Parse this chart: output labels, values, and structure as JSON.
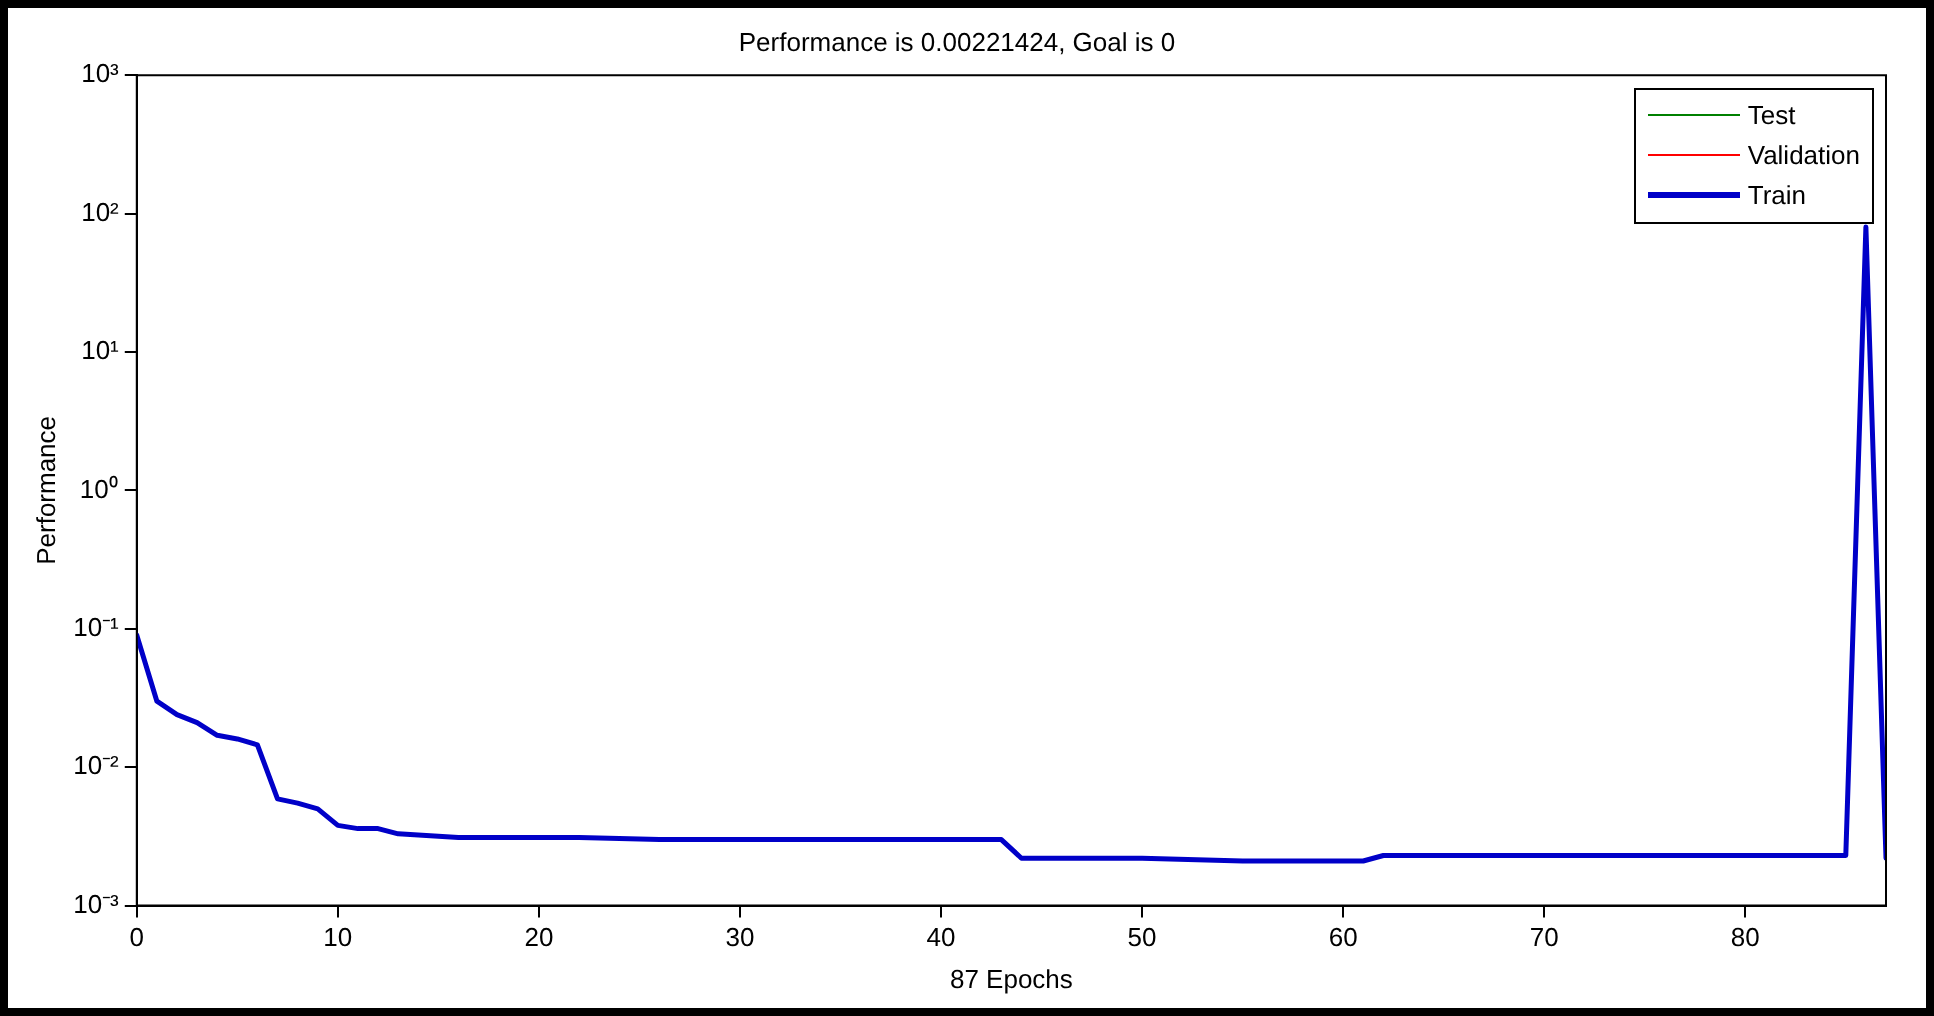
{
  "chart_data": {
    "type": "line",
    "title": "Performance is 0.00221424, Goal is 0",
    "xlabel": "87 Epochs",
    "ylabel": "Performance",
    "log": "y",
    "grid": false,
    "legend": "top right",
    "marker": "none",
    "line_style": "solid",
    "xlim": [
      0,
      87
    ],
    "xticks": [
      0,
      10,
      20,
      30,
      40,
      50,
      60,
      70,
      80
    ],
    "ylim": [
      0.001,
      1000
    ],
    "yticks": [
      {
        "value": 0.001,
        "label": "10⁻³"
      },
      {
        "value": 0.01,
        "label": "10⁻²"
      },
      {
        "value": 0.1,
        "label": "10⁻¹"
      },
      {
        "value": 1,
        "label": "10⁰"
      },
      {
        "value": 10,
        "label": "10¹"
      },
      {
        "value": 100,
        "label": "10²"
      },
      {
        "value": 1000,
        "label": "10³"
      }
    ],
    "series": [
      {
        "name": "Test",
        "color": "#008000"
      },
      {
        "name": "Validation",
        "color": "#ff0000"
      },
      {
        "name": "Train",
        "color": "#0000c8",
        "x": [
          0,
          1,
          2,
          3,
          4,
          5,
          6,
          7,
          8,
          9,
          10,
          11,
          12,
          13,
          16,
          22,
          26,
          30,
          43,
          44,
          50,
          55,
          61,
          62,
          70,
          80,
          85,
          86,
          87
        ],
        "values": [
          0.09,
          0.03,
          0.024,
          0.021,
          0.017,
          0.016,
          0.0145,
          0.0059,
          0.0055,
          0.005,
          0.0038,
          0.0036,
          0.0036,
          0.0033,
          0.0031,
          0.0031,
          0.003,
          0.003,
          0.003,
          0.0022,
          0.0022,
          0.0021,
          0.0021,
          0.0023,
          0.0023,
          0.0023,
          0.0023,
          80,
          0.0022
        ]
      }
    ]
  }
}
